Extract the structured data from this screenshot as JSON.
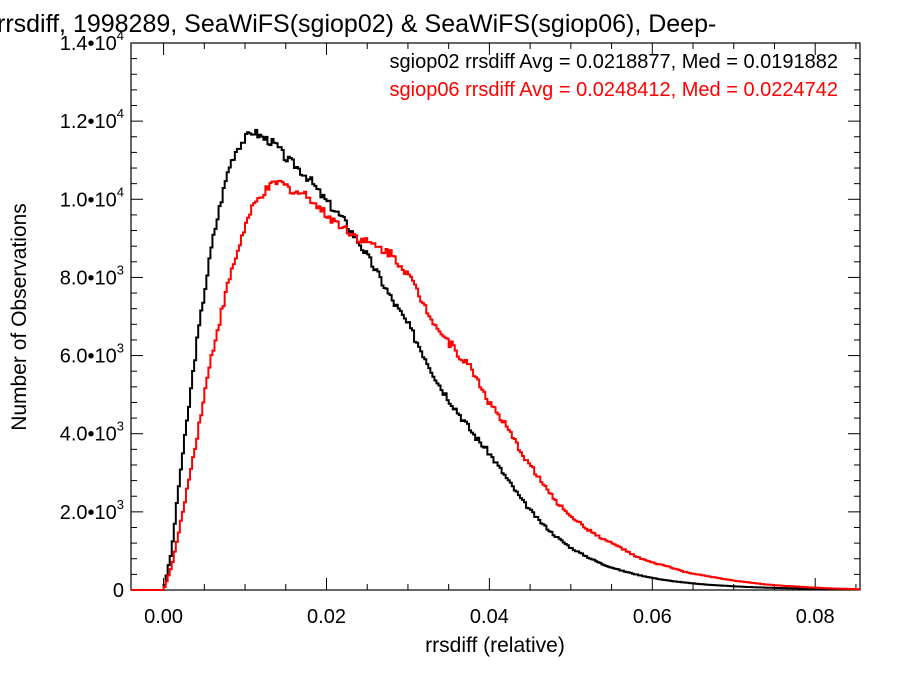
{
  "chart_data": {
    "type": "line",
    "title": "rrsdiff, 1998289, SeaWiFS(sgiop02) & SeaWiFS(sgiop06), Deep-",
    "xlabel": "rrsdiff (relative)",
    "ylabel": "Number of Observations",
    "xlim": [
      -0.004,
      0.0855
    ],
    "ylim": [
      0,
      14000
    ],
    "x_ticks": [
      {
        "value": 0.0,
        "label": "0.00"
      },
      {
        "value": 0.02,
        "label": "0.02"
      },
      {
        "value": 0.04,
        "label": "0.04"
      },
      {
        "value": 0.06,
        "label": "0.06"
      },
      {
        "value": 0.08,
        "label": "0.08"
      }
    ],
    "y_ticks": [
      {
        "value": 0,
        "mant": "0",
        "exp": ""
      },
      {
        "value": 2000,
        "mant": "2.0•10",
        "exp": "3"
      },
      {
        "value": 4000,
        "mant": "4.0•10",
        "exp": "3"
      },
      {
        "value": 6000,
        "mant": "6.0•10",
        "exp": "3"
      },
      {
        "value": 8000,
        "mant": "8.0•10",
        "exp": "3"
      },
      {
        "value": 10000,
        "mant": "1.0•10",
        "exp": "4"
      },
      {
        "value": 12000,
        "mant": "1.2•10",
        "exp": "4"
      },
      {
        "value": 14000,
        "mant": "1.4•10",
        "exp": "4"
      }
    ],
    "legend": [
      {
        "text": "sgiop02 rrsdiff Avg = 0.0218877, Med = 0.0191882",
        "color": "#000000"
      },
      {
        "text": "sgiop06 rrsdiff Avg = 0.0248412, Med = 0.0224742",
        "color": "#ff0000"
      }
    ],
    "legend_position": "top-right",
    "grid": false,
    "series": [
      {
        "color": "#000000",
        "x": [
          -0.004,
          0.0,
          0.001,
          0.002,
          0.003,
          0.004,
          0.005,
          0.006,
          0.007,
          0.008,
          0.009,
          0.01,
          0.011,
          0.012,
          0.013,
          0.014,
          0.015,
          0.016,
          0.017,
          0.018,
          0.019,
          0.02,
          0.022,
          0.024,
          0.026,
          0.028,
          0.03,
          0.032,
          0.034,
          0.036,
          0.038,
          0.04,
          0.042,
          0.044,
          0.046,
          0.048,
          0.05,
          0.052,
          0.054,
          0.056,
          0.058,
          0.06,
          0.062,
          0.064,
          0.066,
          0.068,
          0.07,
          0.072,
          0.074,
          0.076,
          0.078,
          0.08,
          0.082,
          0.0855
        ],
        "y": [
          0,
          0,
          1000,
          2900,
          4500,
          6200,
          7600,
          8900,
          9900,
          10800,
          11300,
          11550,
          11750,
          11600,
          11500,
          11350,
          11050,
          10900,
          10700,
          10500,
          10200,
          9950,
          9500,
          8900,
          8200,
          7450,
          6800,
          6000,
          5200,
          4600,
          4000,
          3500,
          2900,
          2300,
          1800,
          1400,
          1080,
          850,
          650,
          510,
          400,
          310,
          240,
          190,
          150,
          120,
          95,
          75,
          60,
          48,
          40,
          30,
          20,
          12
        ]
      },
      {
        "color": "#ff0000",
        "x": [
          -0.004,
          0.0,
          0.001,
          0.002,
          0.003,
          0.004,
          0.005,
          0.006,
          0.007,
          0.008,
          0.009,
          0.01,
          0.011,
          0.012,
          0.013,
          0.014,
          0.015,
          0.016,
          0.017,
          0.018,
          0.019,
          0.02,
          0.022,
          0.024,
          0.026,
          0.028,
          0.03,
          0.032,
          0.034,
          0.036,
          0.038,
          0.04,
          0.042,
          0.044,
          0.046,
          0.048,
          0.05,
          0.052,
          0.054,
          0.056,
          0.058,
          0.06,
          0.062,
          0.064,
          0.066,
          0.068,
          0.07,
          0.072,
          0.074,
          0.076,
          0.078,
          0.08,
          0.082,
          0.0855
        ],
        "y": [
          0,
          0,
          600,
          1600,
          2700,
          3800,
          5000,
          6100,
          7000,
          7900,
          8600,
          9300,
          9800,
          10100,
          10300,
          10450,
          10350,
          10200,
          10150,
          10050,
          9800,
          9600,
          9300,
          9000,
          8800,
          8600,
          8100,
          7300,
          6600,
          6100,
          5600,
          4800,
          4200,
          3500,
          2900,
          2300,
          1900,
          1560,
          1300,
          1100,
          850,
          700,
          600,
          460,
          380,
          310,
          240,
          190,
          140,
          110,
          85,
          60,
          40,
          20
        ]
      }
    ]
  }
}
